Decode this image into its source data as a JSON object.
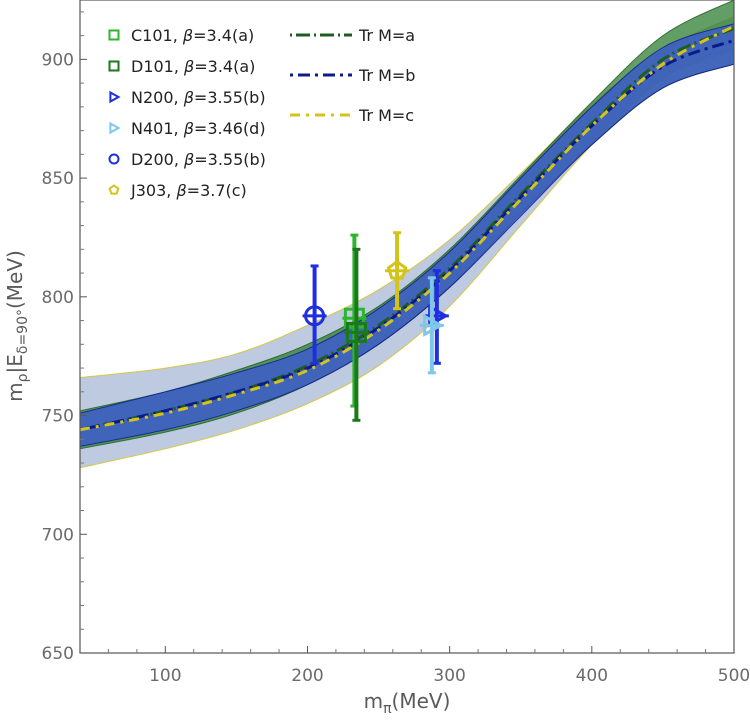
{
  "chart_data": {
    "type": "scatter",
    "xlabel_base": "m",
    "xlabel_sub": "π",
    "xlabel_unit": "(MeV)",
    "ylabel_base": "m",
    "ylabel_sub": "ρ",
    "ylabel_mid": "|E",
    "ylabel_sub2": "δ=90°",
    "ylabel_unit": "(MeV)",
    "xlim": [
      40,
      500
    ],
    "ylim": [
      650,
      925
    ],
    "xticks": [
      100,
      200,
      300,
      400,
      500
    ],
    "yticks": [
      650,
      700,
      750,
      800,
      850,
      900
    ],
    "curves": [
      {
        "name": "Tr M=a",
        "color": "#1f5c1f",
        "band_fill": "#2e7d32",
        "x": [
          40,
          100,
          150,
          200,
          250,
          300,
          350,
          400,
          450,
          500
        ],
        "y": [
          744,
          752,
          760,
          771,
          788,
          812,
          843,
          873,
          900,
          913
        ],
        "lower": [
          736,
          743,
          751,
          763,
          780,
          804,
          835,
          864,
          888,
          898
        ],
        "upper": [
          752,
          760,
          769,
          780,
          796,
          820,
          851,
          882,
          910,
          925
        ]
      },
      {
        "name": "Tr M=b",
        "color": "#0d1a8a",
        "band_fill": "#3a55d8",
        "x": [
          40,
          100,
          150,
          200,
          250,
          300,
          350,
          400,
          450,
          500
        ],
        "y": [
          744,
          752,
          760,
          770,
          787,
          811,
          842,
          872,
          897,
          908
        ],
        "lower": [
          737,
          744,
          752,
          763,
          780,
          804,
          834,
          864,
          888,
          898
        ],
        "upper": [
          751,
          760,
          768,
          778,
          795,
          819,
          850,
          880,
          905,
          915
        ]
      },
      {
        "name": "Tr M=c",
        "color": "#d4c31a",
        "band_fill": "#6f8ab8",
        "x": [
          40,
          100,
          150,
          200,
          250,
          300,
          350,
          400,
          450,
          500
        ],
        "y": [
          744,
          751,
          759,
          769,
          786,
          810,
          841,
          872,
          898,
          914
        ],
        "lower": [
          728,
          736,
          744,
          755,
          771,
          796,
          830,
          864,
          892,
          904
        ],
        "upper": [
          766,
          770,
          776,
          788,
          803,
          824,
          852,
          881,
          904,
          918
        ]
      }
    ],
    "series": [
      {
        "name": "C101",
        "beta_label": "β=3.4(a)",
        "marker": "square",
        "color": "#2db52d",
        "x": 233,
        "y": 791,
        "err_low": 754,
        "err_high": 826
      },
      {
        "name": "D101",
        "beta_label": "β=3.4(a)",
        "marker": "square",
        "color": "#1a7a1a",
        "x": 233,
        "y": 785,
        "err_low": 748,
        "err_high": 820
      },
      {
        "name": "N200",
        "beta_label": "β=3.55(b)",
        "marker": "triangle",
        "color": "#1f2fe0",
        "x": 291,
        "y": 792,
        "err_low": 772,
        "err_high": 811
      },
      {
        "name": "N401",
        "beta_label": "β=3.46(d)",
        "marker": "triangle",
        "color": "#7ec6ea",
        "x": 291,
        "y": 788,
        "err_low": 768,
        "err_high": 808
      },
      {
        "name": "D200",
        "beta_label": "β=3.55(b)",
        "marker": "circle",
        "color": "#1f2fe0",
        "x": 205,
        "y": 792,
        "err_low": 772,
        "err_high": 813
      },
      {
        "name": "J303",
        "beta_label": "β=3.7(c)",
        "marker": "pentagon",
        "color": "#d4c31a",
        "x": 263,
        "y": 811,
        "err_low": 795,
        "err_high": 827
      }
    ],
    "legend_position": "top-left"
  }
}
